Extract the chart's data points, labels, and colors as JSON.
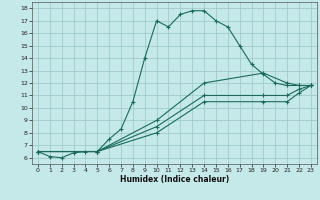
{
  "xlabel": "Humidex (Indice chaleur)",
  "ylabel": "",
  "bg_color": "#c5e8e8",
  "grid_color": "#a0cccc",
  "line_color": "#1a6b5a",
  "xlim": [
    -0.5,
    23.5
  ],
  "ylim": [
    5.5,
    18.5
  ],
  "xticks": [
    0,
    1,
    2,
    3,
    4,
    5,
    6,
    7,
    8,
    9,
    10,
    11,
    12,
    13,
    14,
    15,
    16,
    17,
    18,
    19,
    20,
    21,
    22,
    23
  ],
  "yticks": [
    6,
    7,
    8,
    9,
    10,
    11,
    12,
    13,
    14,
    15,
    16,
    17,
    18
  ],
  "series": [
    {
      "x": [
        0,
        1,
        2,
        3,
        4,
        5,
        6,
        7,
        8,
        9,
        10,
        11,
        12,
        13,
        14,
        15,
        16,
        17,
        18,
        19,
        20,
        21,
        22,
        23
      ],
      "y": [
        6.5,
        6.1,
        6.0,
        6.4,
        6.5,
        6.5,
        7.5,
        8.3,
        10.5,
        14.0,
        17.0,
        16.5,
        17.5,
        17.8,
        17.8,
        17.0,
        16.5,
        15.0,
        13.5,
        12.7,
        12.0,
        11.8,
        11.8,
        11.8
      ]
    },
    {
      "x": [
        0,
        5,
        10,
        14,
        19,
        21,
        22,
        23
      ],
      "y": [
        6.5,
        6.5,
        9.0,
        12.0,
        12.8,
        12.0,
        11.8,
        11.8
      ]
    },
    {
      "x": [
        0,
        5,
        10,
        14,
        19,
        21,
        22,
        23
      ],
      "y": [
        6.5,
        6.5,
        8.5,
        11.0,
        11.0,
        11.0,
        11.5,
        11.8
      ]
    },
    {
      "x": [
        0,
        5,
        10,
        14,
        19,
        21,
        22,
        23
      ],
      "y": [
        6.5,
        6.5,
        8.0,
        10.5,
        10.5,
        10.5,
        11.2,
        11.8
      ]
    }
  ]
}
